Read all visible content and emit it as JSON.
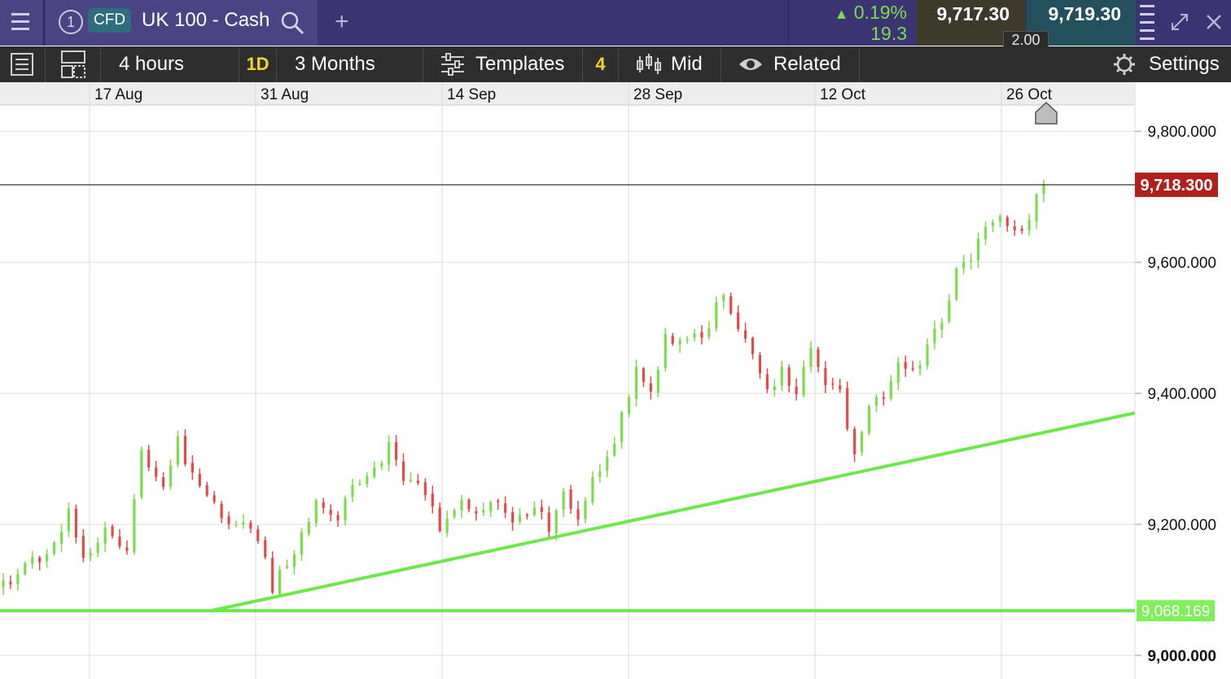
{
  "header": {
    "tab_number": "1",
    "product_badge": "CFD",
    "instrument_name": "UK 100 - Cash",
    "change_percent": "0.19%",
    "change_abs": "19.3",
    "sell_price": "9,717.30",
    "buy_price": "9,719.30",
    "spread": "2.00",
    "add_tab_label": "+"
  },
  "toolbar": {
    "interval": "4 hours",
    "interval_badge": "1D",
    "period": "3 Months",
    "templates": "Templates",
    "indicator_count": "4",
    "price_type": "Mid",
    "related": "Related",
    "settings": "Settings"
  },
  "colors": {
    "header_bg": "#3b3472",
    "up_candle": "#7ddb4d",
    "down_candle": "#e24b4b",
    "trendline": "#6de84a",
    "price_tag": "#b0211c"
  },
  "chart_data": {
    "type": "candlestick",
    "x_tick_labels": [
      "17 Aug",
      "31 Aug",
      "14 Sep",
      "28 Sep",
      "12 Oct",
      "26 Oct"
    ],
    "y_tick_labels": [
      "9,800.000",
      "9,600.000",
      "9,400.000",
      "9,200.000",
      "9,000.000"
    ],
    "y_ticks": [
      9800,
      9600,
      9400,
      9200,
      9000
    ],
    "ylim": [
      8964,
      9840
    ],
    "current_price_label": "9,718.300",
    "current_price": 9718.3,
    "support_label": "9,068.169",
    "support_level": 9068.169,
    "rising_trendline": {
      "from_period": "24 Aug",
      "from_value": 9068,
      "to_period": "end",
      "to_value": 9370
    },
    "close_path": [
      [
        0,
        9110
      ],
      [
        6,
        9160
      ],
      [
        9,
        9218
      ],
      [
        11,
        9150
      ],
      [
        14,
        9188
      ],
      [
        17,
        9170
      ],
      [
        19,
        9308
      ],
      [
        22,
        9265
      ],
      [
        24,
        9328
      ],
      [
        27,
        9250
      ],
      [
        30,
        9215
      ],
      [
        33,
        9200
      ],
      [
        35,
        9178
      ],
      [
        37,
        9105
      ],
      [
        40,
        9160
      ],
      [
        43,
        9238
      ],
      [
        46,
        9212
      ],
      [
        48,
        9262
      ],
      [
        51,
        9278
      ],
      [
        53,
        9322
      ],
      [
        55,
        9270
      ],
      [
        58,
        9248
      ],
      [
        60,
        9192
      ],
      [
        63,
        9235
      ],
      [
        66,
        9212
      ],
      [
        68,
        9240
      ],
      [
        70,
        9195
      ],
      [
        73,
        9228
      ],
      [
        75,
        9195
      ],
      [
        77,
        9248
      ],
      [
        79,
        9210
      ],
      [
        82,
        9290
      ],
      [
        84,
        9325
      ],
      [
        87,
        9432
      ],
      [
        89,
        9410
      ],
      [
        91,
        9482
      ],
      [
        94,
        9488
      ],
      [
        96,
        9478
      ],
      [
        99,
        9560
      ],
      [
        101,
        9505
      ],
      [
        103,
        9470
      ],
      [
        105,
        9405
      ],
      [
        107,
        9430
      ],
      [
        109,
        9395
      ],
      [
        111,
        9478
      ],
      [
        113,
        9420
      ],
      [
        115,
        9398
      ],
      [
        117,
        9305
      ],
      [
        119,
        9370
      ],
      [
        121,
        9402
      ],
      [
        123,
        9438
      ],
      [
        125,
        9430
      ],
      [
        127,
        9465
      ],
      [
        129,
        9515
      ],
      [
        131,
        9582
      ],
      [
        133,
        9600
      ],
      [
        135,
        9658
      ],
      [
        137,
        9676
      ],
      [
        139,
        9642
      ],
      [
        141,
        9668
      ],
      [
        143,
        9718
      ]
    ]
  }
}
